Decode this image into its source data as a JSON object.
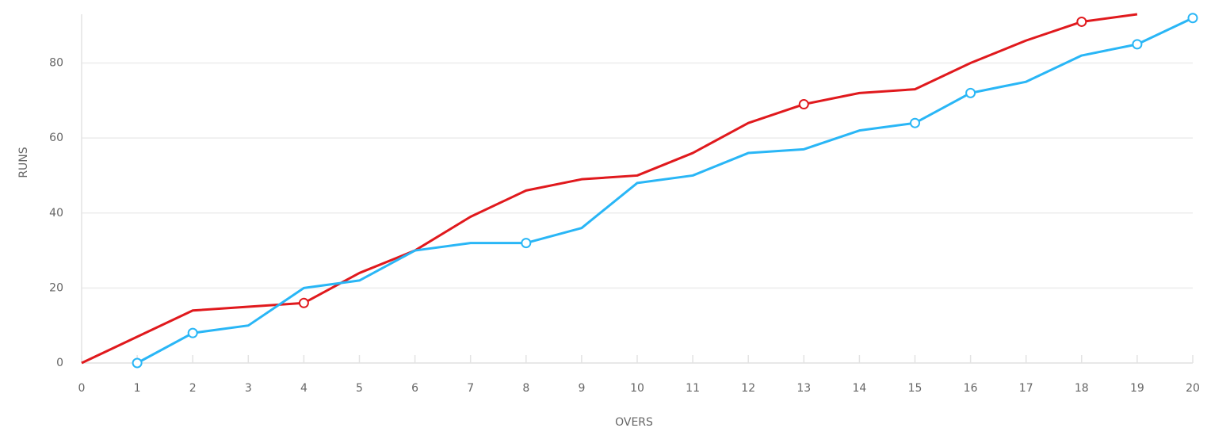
{
  "chart_data": {
    "type": "line",
    "xlabel": "OVERS",
    "ylabel": "RUNS",
    "xlim": [
      0,
      20
    ],
    "xticks": [
      0,
      1,
      2,
      3,
      4,
      5,
      6,
      7,
      8,
      9,
      10,
      11,
      12,
      13,
      14,
      15,
      16,
      17,
      18,
      19,
      20
    ],
    "ylim": [
      0,
      93
    ],
    "yticks": [
      0,
      20,
      40,
      60,
      80
    ],
    "grid": true,
    "series": [
      {
        "color": "#e0191d",
        "x": [
          0,
          1,
          2,
          3,
          4,
          5,
          6,
          7,
          8,
          9,
          10,
          11,
          12,
          13,
          14,
          15,
          16,
          17,
          18,
          19
        ],
        "values": [
          0,
          7,
          14,
          15,
          16,
          24,
          30,
          39,
          46,
          49,
          50,
          56,
          64,
          69,
          72,
          73,
          80,
          86,
          91,
          93
        ],
        "markers": [
          4,
          13,
          18
        ]
      },
      {
        "color": "#29b6f6",
        "x": [
          1,
          2,
          3,
          4,
          5,
          6,
          7,
          8,
          9,
          10,
          11,
          12,
          13,
          14,
          15,
          16,
          17,
          18,
          19,
          20
        ],
        "values": [
          0,
          8,
          10,
          20,
          22,
          30,
          32,
          32,
          36,
          48,
          50,
          56,
          57,
          62,
          64,
          72,
          75,
          82,
          85,
          92
        ],
        "markers": [
          1,
          2,
          8,
          15,
          16,
          19,
          20
        ]
      }
    ]
  }
}
